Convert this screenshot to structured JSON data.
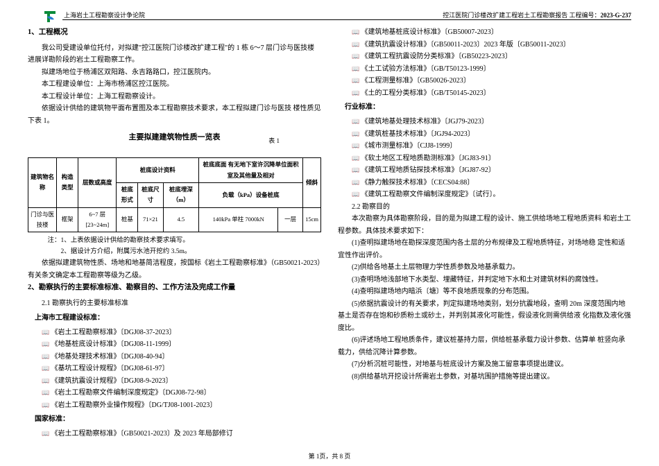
{
  "header": {
    "company": "上海岩土工程勘察设计争论院",
    "project": "控江医院门诊楼改扩建工程岩土工程勘察报告  工程编号：",
    "code": "2023-G-237"
  },
  "logo_colors": {
    "outer": "#0a8a3a",
    "inner": "#2a7fd4"
  },
  "left": {
    "section1_title": "1、工程概况",
    "p1": "我公司受建设单位托付，对拟建\"控江医院门诊楼改扩建工程\"的 1 栋  6～7 层门诊与医技楼进展详勘阶段的岩土工程勘察工作。",
    "p2": "拟建场地位于杨浦区双阳路、永吉路路口，控江医院内。",
    "p3": "本工程建设单位：上海市杨浦区控江医院。",
    "p4": "本工程设计单位：上海工程勘察设计。",
    "p5": "依据设计供给的建筑物平面布置图及本工程勘察技术要求，本工程拟建门诊与医技  楼性质见下表 1。",
    "table_title": "主要拟建建筑物性质一览表",
    "table_label": "表  1",
    "table": {
      "headers": {
        "c1": "建筑物名称",
        "c2": "构造类型",
        "c3": "层数或高度",
        "c4g": "桩底设计资料",
        "c4a": "桩底形式",
        "c4b": "桩底尺寸",
        "c4c": "桩底埋深（m）",
        "c5g": "桩底底面  有无地下室许沉降单位面积 室及其他量及相对",
        "c5a": "负载（kPa）设备桩底",
        "c6": "倾斜"
      },
      "row": {
        "c1": "门诊与医技楼",
        "c2": "框架",
        "c3": "6~7 层[23~24m]",
        "c4a": "桩基",
        "c4b": "71×21",
        "c4c": "4.5",
        "c5a": "140kPa 单柱 7000kN",
        "c5b": "一层",
        "c6": "15cm"
      }
    },
    "note1": "注：1、上表依据设计供给的勘察技术要求填写。",
    "note2": "2、据设计方介绍，附属污水池开挖约 3.5m。",
    "p6": "依据拟建建筑物性质、场地和地基简洁程度，按国标《岩土工程勘察标准》（GB50021-2023）有关条文确定本工程勘察等级为乙级。",
    "section2_title": "2、勘察执行的主要标准标准、勘察目的、工作方法及完成工作量",
    "s2_1": "2.1 勘察执行的主要标准标准",
    "shanghai_title": "上海市工程建设标准：",
    "sh": [
      "《岩土工程勘察标准》〔DGJ08-37-2023〕",
      "《地基桩底设计标准》〔DGJ08-11-1999〕",
      "《地基处理技术标准》〔DGJ08-40-94〕",
      "《基坑工程设计规程》〔DGJ08-61-97〕",
      "《建筑抗震设计规程》〔DGJ08-9-2023〕",
      "《岩土工程勘察文件编制深度规定》〔DGJ08-72-98〕",
      "《岩土工程勘察外业操作规程》〔DG/TJ08-1001-2023〕"
    ],
    "national_title": "国家标准：",
    "nat1": "《岩土工程勘察标准》〔GB50021-2023〕及 2023 年局部修订"
  },
  "right": {
    "nat": [
      "《建筑地基桩底设计标准》〔GB50007-2023〕",
      "《建筑抗震设计标准》〔GB50011-2023〕2023 年版〔GB50011-2023〕",
      "《建筑工程抗震设防分类标准》〔GB50223-2023〕",
      "《土工试验方法标准》〔GB/T50123-1999〕",
      "《工程测量标准》〔GB50026-2023〕",
      "《土的工程分类标准》〔GB/T50145-2023〕"
    ],
    "industry_title": "行业标准：",
    "ind": [
      "《建筑地基处理技术标准》〔JGJ79-2023〕",
      "《建筑桩基技术标准》〔JGJ94-2023〕",
      "《城市测量标准》〔CJJ8-1999〕",
      "《软土地区工程地质勘测标准》〔JGJ83-91〕",
      "《建筑工程地质钻探技术标准》〔JGJ87-92〕",
      "《静力触探技术标准》〔CECS04:88〕",
      "《建筑工程勘察文件编制深度规定》〔试行〕。"
    ],
    "s2_2": "2.2 勘察目的",
    "p1": "本次勘察为具体勘察阶段，目的是为拟建工程的设计、施工供给场地工程地质资料  和岩土工程参数。具体技术要求如下：",
    "items": [
      "(1)查明拟建场地在勘探深度范围内各土层的分布规律及工程地质特征，对场地稳  定性和适宜性作出评价。",
      "(2)供给各地基土土层物理力学性质参数及地基承载力。",
      "(3)查明场地浅部地下水类型、埋藏特征，并判定地下水和土对建筑材料的腐蚀性。",
      "(4)查明拟建场地内暗浜〔塘〕等不良地质现象的分布范围。",
      "(5)依据抗震设计的有关要求，判定拟建场地类别，划分抗震地段，查明 20m 深度范围内地基土是否存在饱和砂质粉土或砂土，并判别其液化可能性，假设液化则需供给液  化指数及液化强度比。",
      "(6)评述场地工程地质条件，建议桩基持力层，供给桩基承载力设计参数、估算单  桩竖向承载力，供给沉降计算参数。",
      "(7)分析沉桩可能性，对地基与桩底设计方案及施工留意事项提出建议。",
      "(8)供给基坑开挖设计所需岩土参数，对基坑围护措施等提出建议。"
    ]
  },
  "footer": "第  1页，共 8 页"
}
